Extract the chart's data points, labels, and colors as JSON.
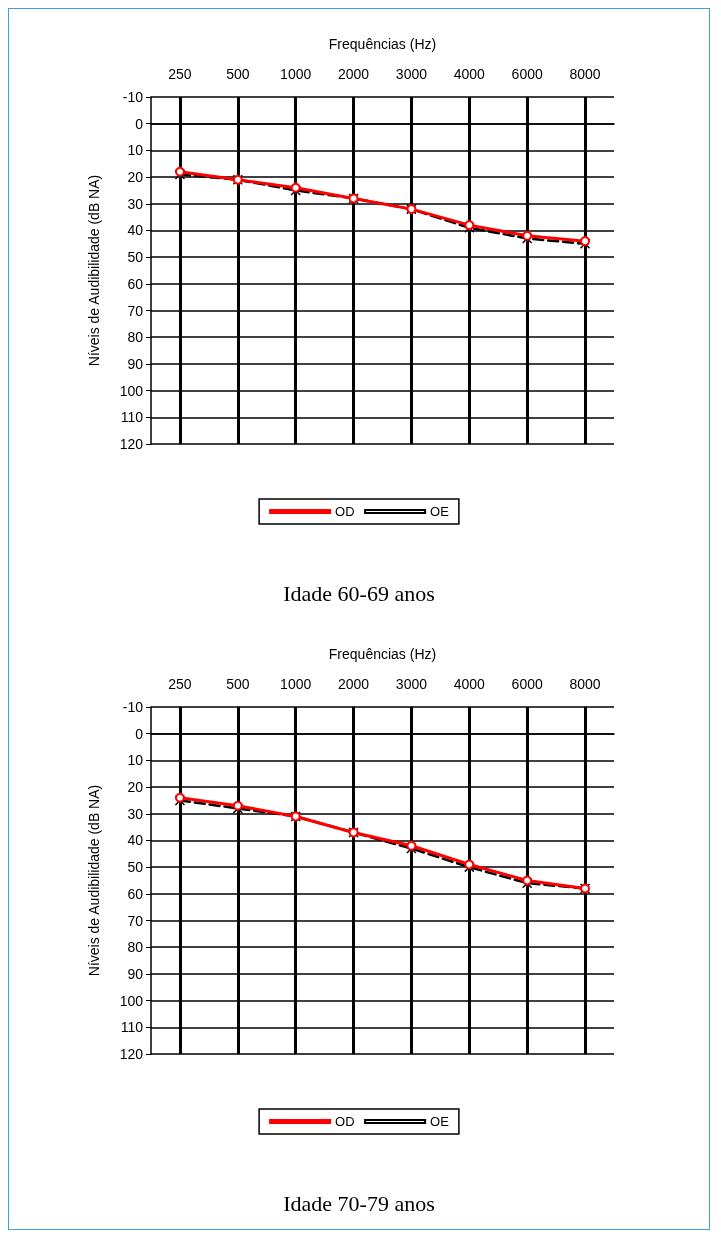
{
  "chart_data": [
    {
      "type": "line",
      "title": "Idade 60-69 anos",
      "xlabel": "Frequências (Hz)",
      "ylabel": "Níveis de Audibilidade (dB NA)",
      "categories": [
        "250",
        "500",
        "1000",
        "2000",
        "3000",
        "4000",
        "6000",
        "8000"
      ],
      "series": [
        {
          "name": "OD",
          "color": "#ff0000",
          "marker": "circle",
          "line_style": "solid",
          "values": [
            18,
            21,
            24,
            28,
            32,
            38,
            42,
            44
          ]
        },
        {
          "name": "OE",
          "color": "#000000",
          "marker": "cross",
          "line_style": "dashed",
          "values": [
            19,
            21,
            25,
            28,
            32,
            39,
            43,
            45
          ]
        }
      ],
      "ylim": [
        120,
        -10
      ],
      "yticks": [
        -10,
        0,
        10,
        20,
        30,
        40,
        50,
        60,
        70,
        80,
        90,
        100,
        110,
        120
      ],
      "grid": true,
      "legend": "bottom"
    },
    {
      "type": "line",
      "title": "Idade 70-79 anos",
      "xlabel": "Frequências (Hz)",
      "ylabel": "Níveis de Audibilidade (dB NA)",
      "categories": [
        "250",
        "500",
        "1000",
        "2000",
        "3000",
        "4000",
        "6000",
        "8000"
      ],
      "series": [
        {
          "name": "OD",
          "color": "#ff0000",
          "marker": "circle",
          "line_style": "solid",
          "values": [
            24,
            27,
            31,
            37,
            42,
            49,
            55,
            58
          ]
        },
        {
          "name": "OE",
          "color": "#000000",
          "marker": "cross",
          "line_style": "dashed",
          "values": [
            25,
            28,
            31,
            37,
            43,
            50,
            56,
            58
          ]
        }
      ],
      "ylim": [
        120,
        -10
      ],
      "yticks": [
        -10,
        0,
        10,
        20,
        30,
        40,
        50,
        60,
        70,
        80,
        90,
        100,
        110,
        120
      ],
      "grid": true,
      "legend": "bottom"
    }
  ]
}
